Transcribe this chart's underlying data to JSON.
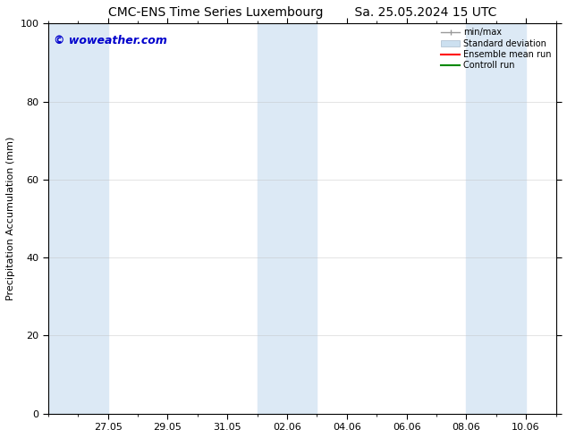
{
  "title_left": "CMC-ENS Time Series Luxembourg",
  "title_right": "Sa. 25.05.2024 15 UTC",
  "ylabel": "Precipitation Accumulation (mm)",
  "watermark": "© woweather.com",
  "watermark_color": "#0000cc",
  "ylim": [
    0,
    100
  ],
  "yticks": [
    0,
    20,
    40,
    60,
    80,
    100
  ],
  "background_color": "#ffffff",
  "plot_bg_color": "#ffffff",
  "xtick_labels": [
    "27.05",
    "29.05",
    "31.05",
    "02.06",
    "04.06",
    "06.06",
    "08.06",
    "10.06"
  ],
  "shaded_color": "#dce9f5",
  "legend_items": [
    {
      "label": "min/max",
      "color": "#aaaaaa",
      "style": "errorbar"
    },
    {
      "label": "Standard deviation",
      "color": "#ccdded",
      "style": "band"
    },
    {
      "label": "Ensemble mean run",
      "color": "#ff0000",
      "style": "line"
    },
    {
      "label": "Controll run",
      "color": "#008800",
      "style": "line"
    }
  ],
  "font_size_title": 10,
  "font_size_axis": 8,
  "font_size_tick": 8,
  "font_size_legend": 7,
  "font_size_watermark": 9,
  "grid_color": "#bbbbbb",
  "grid_alpha": 0.4,
  "spine_color": "#000000"
}
